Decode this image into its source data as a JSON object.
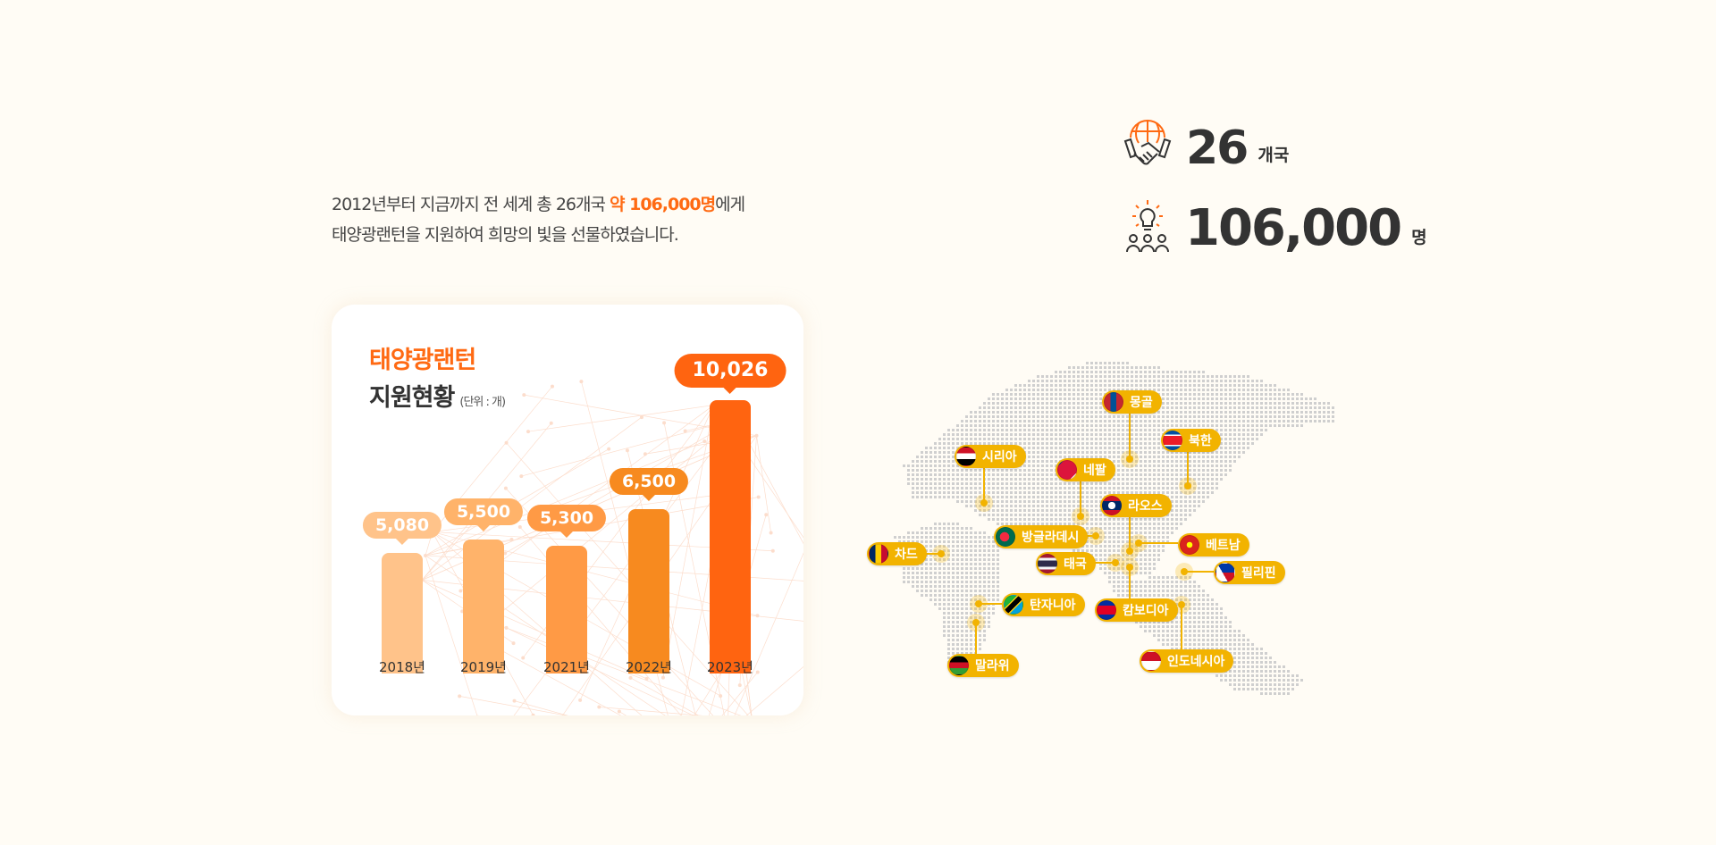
{
  "intro": {
    "line1_pre": "2012년부터 지금까지 전 세계 총 26개국 ",
    "line1_hl": "약 106,000명",
    "line1_post": "에게",
    "line2": "태양광랜턴을 지원하여 희망의 빛을 선물하였습니다."
  },
  "stats": [
    {
      "icon": "handshake-globe-icon",
      "value": "26",
      "unit": "개국"
    },
    {
      "icon": "lightbulb-people-icon",
      "value": "106,000",
      "unit": "명"
    }
  ],
  "chart_data": {
    "type": "bar",
    "title": "태양광랜턴",
    "subtitle": "지원현황",
    "unit_note": "(단위 : 개)",
    "categories": [
      "2018년",
      "2019년",
      "2021년",
      "2022년",
      "2023년"
    ],
    "values": [
      5080,
      5500,
      5300,
      6500,
      10026
    ],
    "value_labels": [
      "5,080",
      "5,500",
      "5,300",
      "6,500",
      "10,026"
    ],
    "colors": [
      "#ffc38a",
      "#ffb36a",
      "#ff9a45",
      "#f78a1f",
      "#ff6410"
    ]
  },
  "map": {
    "pin_color": "#f2b300",
    "countries": [
      {
        "name": "몽골",
        "flag": "mongolia-flag-icon"
      },
      {
        "name": "북한",
        "flag": "north-korea-flag-icon"
      },
      {
        "name": "시리아",
        "flag": "syria-flag-icon"
      },
      {
        "name": "네팔",
        "flag": "nepal-flag-icon"
      },
      {
        "name": "라오스",
        "flag": "laos-flag-icon"
      },
      {
        "name": "방글라데시",
        "flag": "bangladesh-flag-icon"
      },
      {
        "name": "베트남",
        "flag": "vietnam-flag-icon"
      },
      {
        "name": "차드",
        "flag": "chad-flag-icon"
      },
      {
        "name": "태국",
        "flag": "thailand-flag-icon"
      },
      {
        "name": "필리핀",
        "flag": "philippines-flag-icon"
      },
      {
        "name": "탄자니아",
        "flag": "tanzania-flag-icon"
      },
      {
        "name": "캄보디아",
        "flag": "cambodia-flag-icon"
      },
      {
        "name": "말라위",
        "flag": "malawi-flag-icon"
      },
      {
        "name": "인도네시아",
        "flag": "indonesia-flag-icon"
      }
    ]
  }
}
